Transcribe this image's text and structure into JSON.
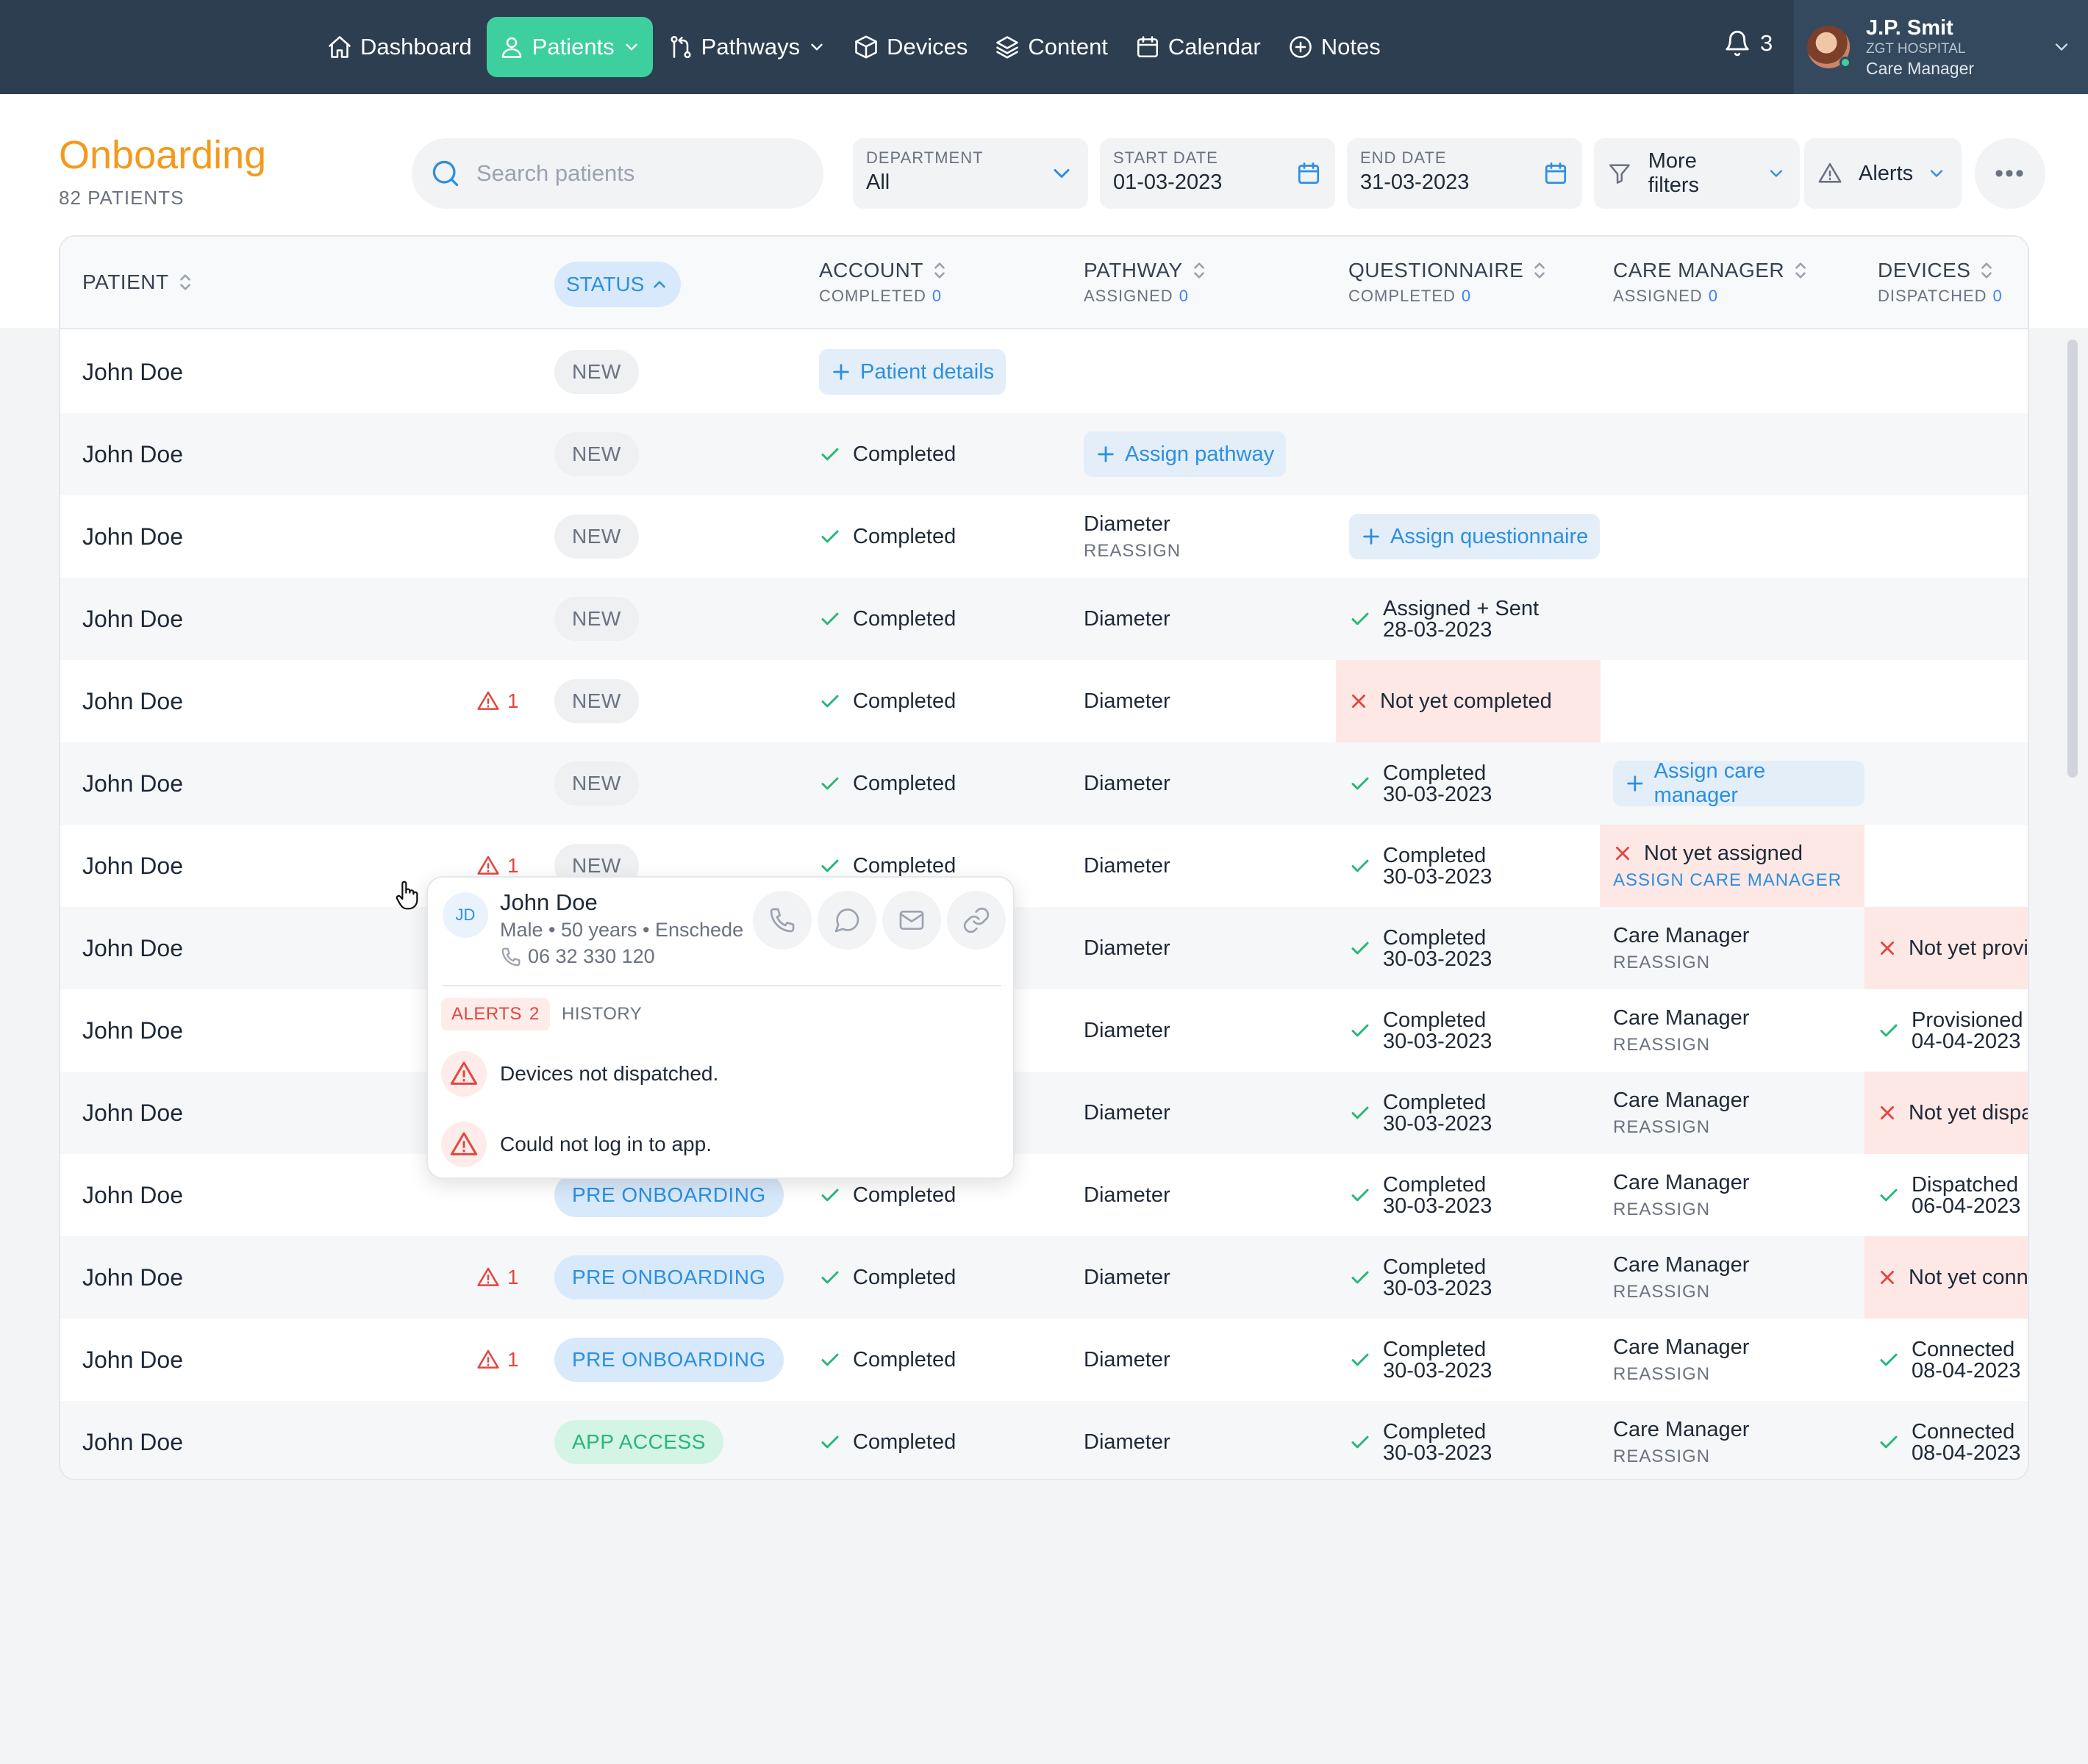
{
  "nav": {
    "items": [
      {
        "label": "Dashboard",
        "icon": "home-icon"
      },
      {
        "label": "Patients",
        "icon": "user-icon",
        "active": true
      },
      {
        "label": "Pathways",
        "icon": "pathways-icon"
      },
      {
        "label": "Devices",
        "icon": "box-icon"
      },
      {
        "label": "Content",
        "icon": "layers-icon"
      },
      {
        "label": "Calendar",
        "icon": "calendar-icon"
      },
      {
        "label": "Notes",
        "icon": "plus-circle-icon"
      }
    ],
    "notifications": "3",
    "user": {
      "name": "J.P. Smit",
      "hospital": "ZGT HOSPITAL",
      "role": "Care Manager"
    }
  },
  "page": {
    "title": "Onboarding",
    "subtitle": "82 PATIENTS"
  },
  "toolbar": {
    "search_placeholder": "Search patients",
    "department": {
      "label": "DEPARTMENT",
      "value": "All"
    },
    "start_date": {
      "label": "START DATE",
      "value": "01-03-2023"
    },
    "end_date": {
      "label": "END DATE",
      "value": "31-03-2023"
    },
    "more_filters": "More filters",
    "alerts": "Alerts",
    "more": "•••"
  },
  "table": {
    "headers": {
      "patient": "PATIENT",
      "status": "STATUS",
      "account": {
        "title": "ACCOUNT",
        "sub": "COMPLETED",
        "count": "0"
      },
      "pathway": {
        "title": "PATHWAY",
        "sub": "ASSIGNED",
        "count": "0"
      },
      "questionnaire": {
        "title": "QUESTIONNAIRE",
        "sub": "COMPLETED",
        "count": "0"
      },
      "care_manager": {
        "title": "CARE MANAGER",
        "sub": "ASSIGNED",
        "count": "0"
      },
      "devices": {
        "title": "DEVICES",
        "sub": "DISPATCHED",
        "count": "0"
      }
    },
    "rows": [
      {
        "name": "John Doe",
        "alert": "",
        "status": "NEW",
        "status_kind": "new",
        "account": {
          "kind": "button",
          "text": "Patient details"
        },
        "pathway": {
          "kind": "none"
        },
        "questionnaire": {
          "kind": "none"
        },
        "care_manager": {
          "kind": "none"
        },
        "devices": {
          "kind": "none"
        }
      },
      {
        "name": "John Doe",
        "alert": "",
        "status": "NEW",
        "status_kind": "new",
        "account": {
          "kind": "check",
          "text": "Completed"
        },
        "pathway": {
          "kind": "button",
          "text": "Assign pathway"
        },
        "questionnaire": {
          "kind": "none"
        },
        "care_manager": {
          "kind": "none"
        },
        "devices": {
          "kind": "none"
        }
      },
      {
        "name": "John Doe",
        "alert": "",
        "status": "NEW",
        "status_kind": "new",
        "account": {
          "kind": "check",
          "text": "Completed"
        },
        "pathway": {
          "kind": "sub",
          "text": "Diameter",
          "sub": "REASSIGN"
        },
        "questionnaire": {
          "kind": "button",
          "text": "Assign questionnaire"
        },
        "care_manager": {
          "kind": "none"
        },
        "devices": {
          "kind": "none"
        }
      },
      {
        "name": "John Doe",
        "alert": "",
        "status": "NEW",
        "status_kind": "new",
        "account": {
          "kind": "check",
          "text": "Completed"
        },
        "pathway": {
          "kind": "text",
          "text": "Diameter"
        },
        "questionnaire": {
          "kind": "check2",
          "text": "Assigned + Sent",
          "date": "28-03-2023"
        },
        "care_manager": {
          "kind": "none"
        },
        "devices": {
          "kind": "none"
        }
      },
      {
        "name": "John Doe",
        "alert": "1",
        "status": "NEW",
        "status_kind": "new",
        "account": {
          "kind": "check",
          "text": "Completed"
        },
        "pathway": {
          "kind": "text",
          "text": "Diameter"
        },
        "questionnaire": {
          "kind": "x",
          "text": "Not yet completed"
        },
        "care_manager": {
          "kind": "none"
        },
        "devices": {
          "kind": "none"
        }
      },
      {
        "name": "John Doe",
        "alert": "",
        "status": "NEW",
        "status_kind": "new",
        "account": {
          "kind": "check",
          "text": "Completed"
        },
        "pathway": {
          "kind": "text",
          "text": "Diameter"
        },
        "questionnaire": {
          "kind": "check2",
          "text": "Completed",
          "date": "30-03-2023"
        },
        "care_manager": {
          "kind": "button",
          "text": "Assign care manager"
        },
        "devices": {
          "kind": "none"
        }
      },
      {
        "name": "John Doe",
        "alert": "1",
        "status": "NEW",
        "status_kind": "new",
        "account": {
          "kind": "check",
          "text": "Completed"
        },
        "pathway": {
          "kind": "text",
          "text": "Diameter"
        },
        "questionnaire": {
          "kind": "check2",
          "text": "Completed",
          "date": "30-03-2023"
        },
        "care_manager": {
          "kind": "xsub",
          "text": "Not yet assigned",
          "sub": "ASSIGN CARE MANAGER"
        },
        "devices": {
          "kind": "none"
        }
      },
      {
        "name": "John Doe",
        "alert": "",
        "status": "",
        "status_kind": "hidden",
        "account": {
          "kind": "hidden"
        },
        "pathway": {
          "kind": "text",
          "text": "Diameter"
        },
        "questionnaire": {
          "kind": "check2",
          "text": "Completed",
          "date": "30-03-2023"
        },
        "care_manager": {
          "kind": "sub",
          "text": "Care Manager",
          "sub": "REASSIGN"
        },
        "devices": {
          "kind": "x",
          "text": "Not yet provis"
        }
      },
      {
        "name": "John Doe",
        "alert": "",
        "status": "",
        "status_kind": "hidden",
        "account": {
          "kind": "hidden"
        },
        "pathway": {
          "kind": "text",
          "text": "Diameter"
        },
        "questionnaire": {
          "kind": "check2",
          "text": "Completed",
          "date": "30-03-2023"
        },
        "care_manager": {
          "kind": "sub",
          "text": "Care Manager",
          "sub": "REASSIGN"
        },
        "devices": {
          "kind": "check2",
          "text": "Provisioned",
          "date": "04-04-2023"
        }
      },
      {
        "name": "John Doe",
        "alert": "",
        "status": "",
        "status_kind": "hidden",
        "account": {
          "kind": "hidden"
        },
        "pathway": {
          "kind": "text",
          "text": "Diameter"
        },
        "questionnaire": {
          "kind": "check2",
          "text": "Completed",
          "date": "30-03-2023"
        },
        "care_manager": {
          "kind": "sub",
          "text": "Care Manager",
          "sub": "REASSIGN"
        },
        "devices": {
          "kind": "x",
          "text": "Not yet dispa"
        }
      },
      {
        "name": "John Doe",
        "alert": "",
        "status": "PRE ONBOARDING",
        "status_kind": "pre",
        "account": {
          "kind": "check",
          "text": "Completed"
        },
        "pathway": {
          "kind": "text",
          "text": "Diameter"
        },
        "questionnaire": {
          "kind": "check2",
          "text": "Completed",
          "date": "30-03-2023"
        },
        "care_manager": {
          "kind": "sub",
          "text": "Care Manager",
          "sub": "REASSIGN"
        },
        "devices": {
          "kind": "check2",
          "text": "Dispatched",
          "date": "06-04-2023"
        }
      },
      {
        "name": "John Doe",
        "alert": "1",
        "status": "PRE ONBOARDING",
        "status_kind": "pre",
        "account": {
          "kind": "check",
          "text": "Completed"
        },
        "pathway": {
          "kind": "text",
          "text": "Diameter"
        },
        "questionnaire": {
          "kind": "check2",
          "text": "Completed",
          "date": "30-03-2023"
        },
        "care_manager": {
          "kind": "sub",
          "text": "Care Manager",
          "sub": "REASSIGN"
        },
        "devices": {
          "kind": "x",
          "text": "Not yet conne"
        }
      },
      {
        "name": "John Doe",
        "alert": "1",
        "status": "PRE ONBOARDING",
        "status_kind": "pre",
        "account": {
          "kind": "check",
          "text": "Completed"
        },
        "pathway": {
          "kind": "text",
          "text": "Diameter"
        },
        "questionnaire": {
          "kind": "check2",
          "text": "Completed",
          "date": "30-03-2023"
        },
        "care_manager": {
          "kind": "sub",
          "text": "Care Manager",
          "sub": "REASSIGN"
        },
        "devices": {
          "kind": "check2",
          "text": "Connected",
          "date": "08-04-2023"
        }
      },
      {
        "name": "John Doe",
        "alert": "",
        "status": "APP ACCESS",
        "status_kind": "app",
        "account": {
          "kind": "check",
          "text": "Completed"
        },
        "pathway": {
          "kind": "text",
          "text": "Diameter"
        },
        "questionnaire": {
          "kind": "check2",
          "text": "Completed",
          "date": "30-03-2023"
        },
        "care_manager": {
          "kind": "sub",
          "text": "Care Manager",
          "sub": "REASSIGN"
        },
        "devices": {
          "kind": "check2",
          "text": "Connected",
          "date": "08-04-2023"
        }
      }
    ]
  },
  "popover": {
    "initials": "JD",
    "name": "John Doe",
    "meta": "Male • 50 years • Enschede",
    "phone": "06 32 330 120",
    "tab_alerts": "ALERTS",
    "tab_alerts_count": "2",
    "tab_history": "HISTORY",
    "alerts": [
      "Devices not dispatched.",
      "Could not log in to app."
    ]
  },
  "colors": {
    "nav_bg": "#2c3e50",
    "accent_green": "#3ecf9e",
    "title_orange": "#f39a1e",
    "link_blue": "#2d8fe0",
    "alert_red": "#e2463f"
  }
}
